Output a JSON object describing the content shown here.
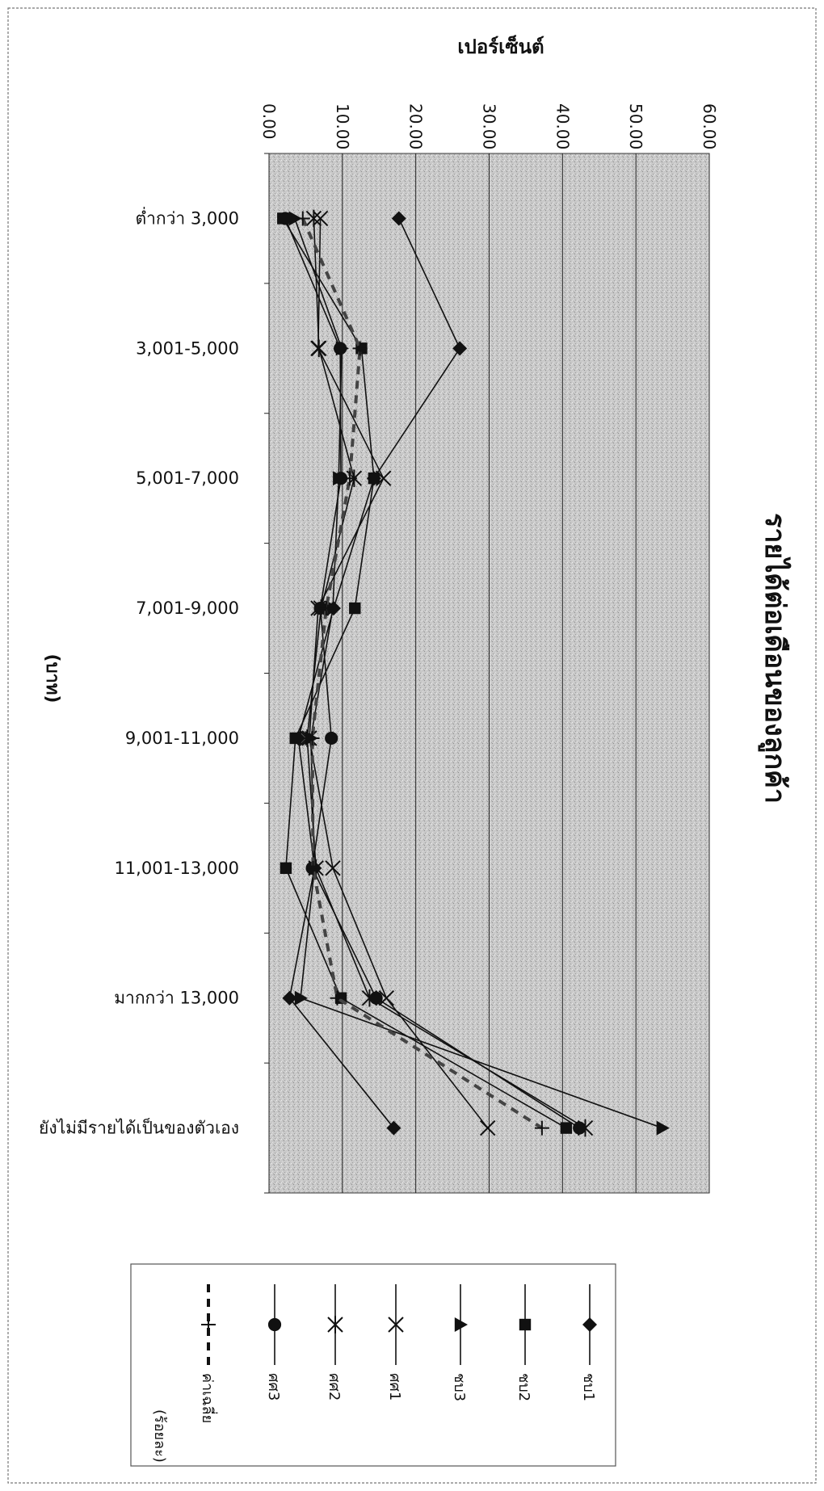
{
  "chart_data": {
    "type": "line",
    "title": "รายได้ต่อเดือนของลูกค้า",
    "ylabel": "เปอร์เซ็นต์",
    "xlabel": "(บาท)",
    "ylim": [
      0,
      60
    ],
    "y_ticks": [
      "0.00",
      "10.00",
      "20.00",
      "30.00",
      "40.00",
      "50.00",
      "60.00"
    ],
    "grid": true,
    "orientation": "rotated 90 degrees clockwise",
    "legend_position": "bottom",
    "legend_note": "(ร้อยละ)",
    "categories": [
      "ต่ำกว่า 3,000",
      "3,001-5,000",
      "5,001-7,000",
      "7,001-9,000",
      "9,001-11,000",
      "11,001-13,000",
      "มากกว่า 13,000",
      "ยังไม่มีรายได้เป็นของตัวเอง"
    ],
    "series": [
      {
        "name": "ชบ1",
        "marker": "diamond",
        "dashed": false,
        "values": [
          17.7,
          26.0,
          14.3,
          8.8,
          4.0,
          6.2,
          2.8,
          17.0
        ]
      },
      {
        "name": "ชบ2",
        "marker": "square",
        "dashed": false,
        "values": [
          1.9,
          12.6,
          14.3,
          11.7,
          3.6,
          2.3,
          9.8,
          40.5
        ]
      },
      {
        "name": "ชบ3",
        "marker": "triangle",
        "dashed": false,
        "values": [
          3.5,
          9.9,
          9.5,
          8.7,
          5.7,
          6.2,
          4.3,
          53.6
        ]
      },
      {
        "name": "ศศ1",
        "marker": "x",
        "dashed": false,
        "values": [
          7.0,
          6.7,
          15.6,
          6.7,
          5.5,
          8.7,
          16.0,
          29.8
        ]
      },
      {
        "name": "ศศ2",
        "marker": "star",
        "dashed": false,
        "values": [
          6.1,
          6.8,
          11.6,
          7.1,
          5.2,
          6.4,
          13.7,
          43.1
        ]
      },
      {
        "name": "ศศ3",
        "marker": "circle",
        "dashed": false,
        "values": [
          2.2,
          9.7,
          9.8,
          7.0,
          8.5,
          5.9,
          14.6,
          42.3
        ]
      },
      {
        "name": "ค่าเฉลี่ย",
        "marker": "plus",
        "dashed": true,
        "values": [
          4.6,
          12.4,
          11.0,
          7.8,
          5.9,
          6.0,
          9.3,
          37.2
        ]
      }
    ]
  }
}
